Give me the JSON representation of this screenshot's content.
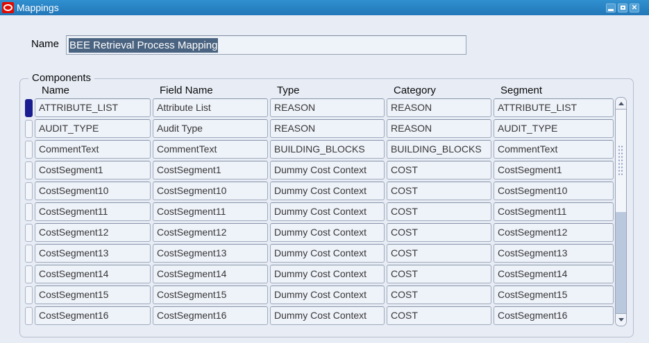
{
  "window": {
    "title": "Mappings",
    "controls": {
      "minimize": "minimize",
      "maximize": "maximize",
      "close": "close"
    }
  },
  "form": {
    "name_label": "Name",
    "name_value": "BEE Retrieval Process Mapping"
  },
  "components": {
    "legend": "Components",
    "columns": {
      "name": "Name",
      "field_name": "Field Name",
      "type": "Type",
      "category": "Category",
      "segment": "Segment"
    },
    "rows": [
      {
        "name": "ATTRIBUTE_LIST",
        "field_name": "Attribute List",
        "type": "REASON",
        "category": "REASON",
        "segment": "ATTRIBUTE_LIST",
        "selected": true
      },
      {
        "name": "AUDIT_TYPE",
        "field_name": "Audit Type",
        "type": "REASON",
        "category": "REASON",
        "segment": "AUDIT_TYPE",
        "selected": false
      },
      {
        "name": "CommentText",
        "field_name": "CommentText",
        "type": "BUILDING_BLOCKS",
        "category": "BUILDING_BLOCKS",
        "segment": "CommentText",
        "selected": false
      },
      {
        "name": "CostSegment1",
        "field_name": "CostSegment1",
        "type": "Dummy Cost Context",
        "category": "COST",
        "segment": "CostSegment1",
        "selected": false
      },
      {
        "name": "CostSegment10",
        "field_name": "CostSegment10",
        "type": "Dummy Cost Context",
        "category": "COST",
        "segment": "CostSegment10",
        "selected": false
      },
      {
        "name": "CostSegment11",
        "field_name": "CostSegment11",
        "type": "Dummy Cost Context",
        "category": "COST",
        "segment": "CostSegment11",
        "selected": false
      },
      {
        "name": "CostSegment12",
        "field_name": "CostSegment12",
        "type": "Dummy Cost Context",
        "category": "COST",
        "segment": "CostSegment12",
        "selected": false
      },
      {
        "name": "CostSegment13",
        "field_name": "CostSegment13",
        "type": "Dummy Cost Context",
        "category": "COST",
        "segment": "CostSegment13",
        "selected": false
      },
      {
        "name": "CostSegment14",
        "field_name": "CostSegment14",
        "type": "Dummy Cost Context",
        "category": "COST",
        "segment": "CostSegment14",
        "selected": false
      },
      {
        "name": "CostSegment15",
        "field_name": "CostSegment15",
        "type": "Dummy Cost Context",
        "category": "COST",
        "segment": "CostSegment15",
        "selected": false
      },
      {
        "name": "CostSegment16",
        "field_name": "CostSegment16",
        "type": "Dummy Cost Context",
        "category": "COST",
        "segment": "CostSegment16",
        "selected": false
      }
    ]
  },
  "colors": {
    "titlebar": "#2b85c7",
    "window_bg": "#e7ecf5",
    "cell_bg": "#eef2f9",
    "selection_bg": "#4a6380",
    "record_indicator": "#191d8f",
    "scroll_track": "#bac8de",
    "oracle_red": "#e00b00"
  }
}
